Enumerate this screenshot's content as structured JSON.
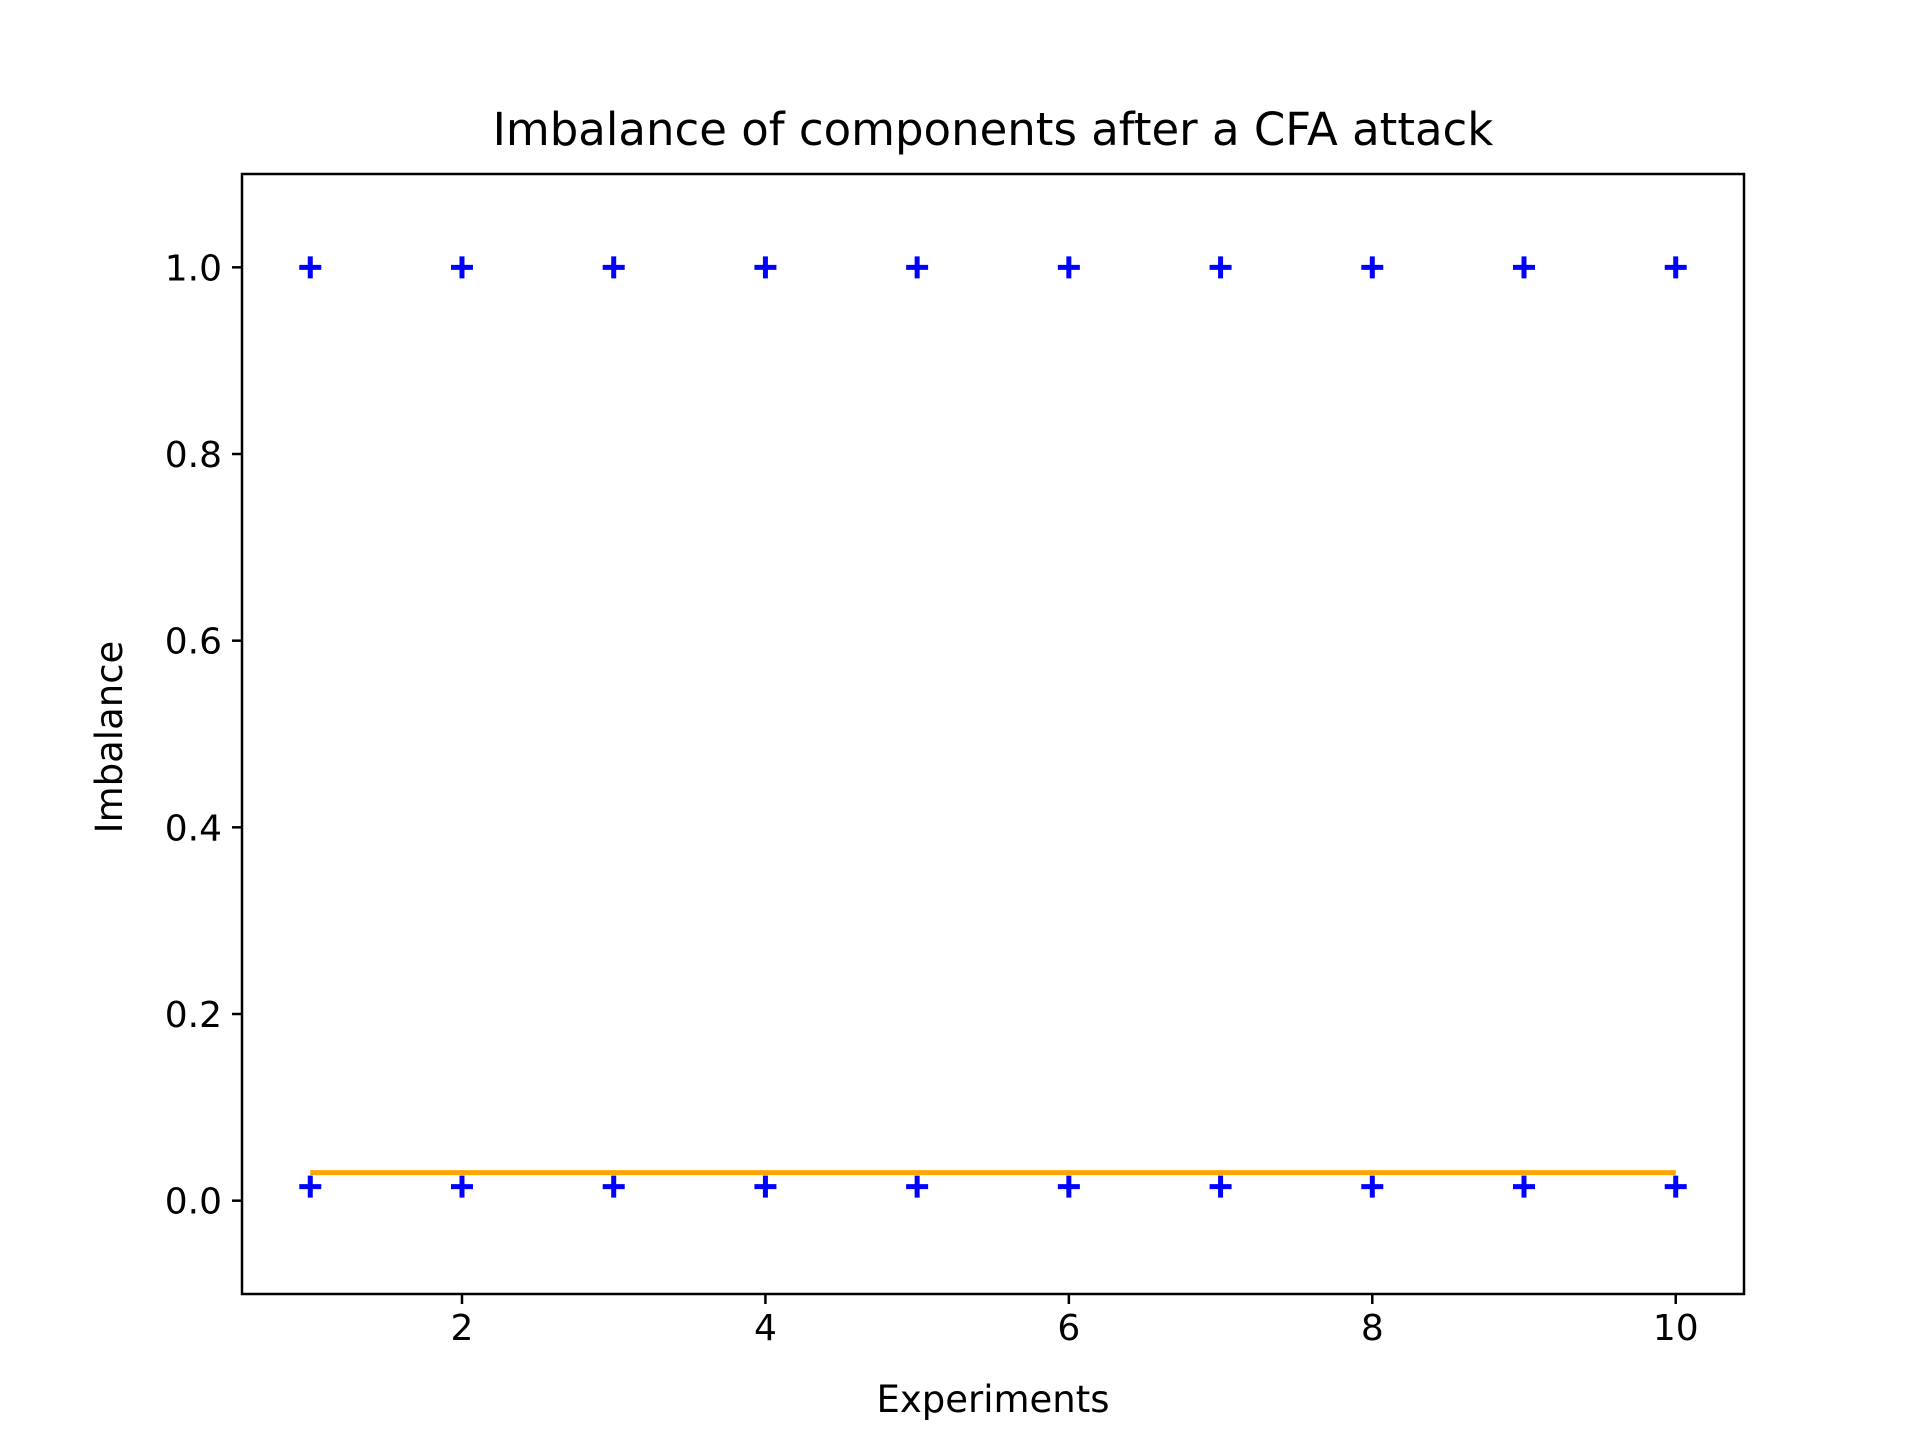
{
  "chart_data": {
    "type": "scatter",
    "title": "Imbalance of components after a CFA attack",
    "xlabel": "Experiments",
    "ylabel": "Imbalance",
    "xlim": [
      0.55,
      10.45
    ],
    "ylim": [
      -0.1,
      1.1
    ],
    "xticks": [
      2,
      4,
      6,
      8,
      10
    ],
    "xtick_labels": [
      "2",
      "4",
      "6",
      "8",
      "10"
    ],
    "yticks": [
      0.0,
      0.2,
      0.4,
      0.6,
      0.8,
      1.0
    ],
    "ytick_labels": [
      "0.0",
      "0.2",
      "0.4",
      "0.6",
      "0.8",
      "1.0"
    ],
    "grid": false,
    "legend": "none",
    "series": [
      {
        "kind": "scatter",
        "marker": "plus",
        "color": "#0000ff",
        "x": [
          1,
          2,
          3,
          4,
          5,
          6,
          7,
          8,
          9,
          10
        ],
        "y": [
          1.0,
          1.0,
          1.0,
          1.0,
          1.0,
          1.0,
          1.0,
          1.0,
          1.0,
          1.0
        ]
      },
      {
        "kind": "scatter",
        "marker": "plus",
        "color": "#0000ff",
        "x": [
          1,
          2,
          3,
          4,
          5,
          6,
          7,
          8,
          9,
          10
        ],
        "y": [
          0.015,
          0.015,
          0.015,
          0.015,
          0.015,
          0.015,
          0.015,
          0.015,
          0.015,
          0.015
        ]
      },
      {
        "kind": "line",
        "color": "#ffa500",
        "x": [
          1,
          10
        ],
        "y": [
          0.03,
          0.03
        ]
      }
    ]
  }
}
